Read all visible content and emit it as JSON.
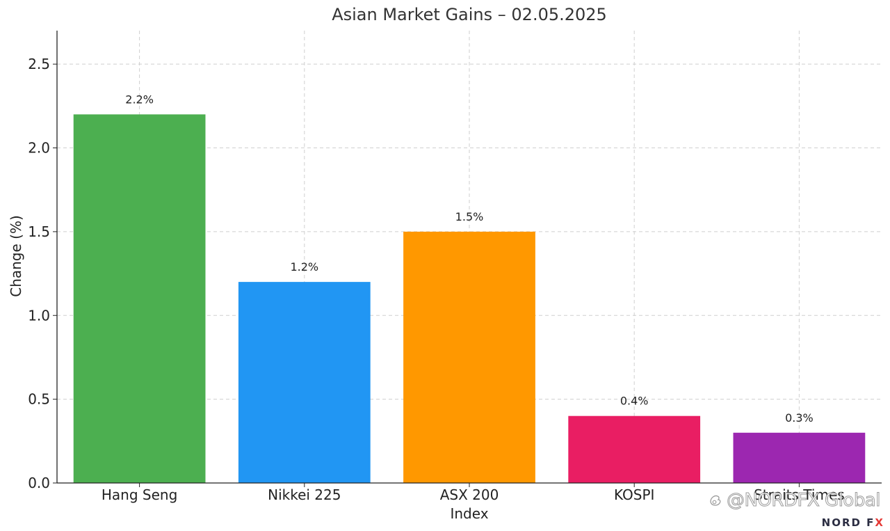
{
  "chart_data": {
    "type": "bar",
    "title": "Asian Market Gains – 02.05.2025",
    "xlabel": "Index",
    "ylabel": "Change (%)",
    "categories": [
      "Hang Seng",
      "Nikkei 225",
      "ASX 200",
      "KOSPI",
      "Straits Times"
    ],
    "values": [
      2.2,
      1.2,
      1.5,
      0.4,
      0.3
    ],
    "data_labels": [
      "2.2%",
      "1.2%",
      "1.5%",
      "0.4%",
      "0.3%"
    ],
    "colors": [
      "#4CAF50",
      "#2196F3",
      "#FF9800",
      "#E91E63",
      "#9C27B0"
    ],
    "ylim": [
      0,
      2.7
    ],
    "yticks": [
      0.0,
      0.5,
      1.0,
      1.5,
      2.0,
      2.5
    ],
    "ytick_labels": [
      "0.0",
      "0.5",
      "1.0",
      "1.5",
      "2.0",
      "2.5"
    ],
    "grid": true,
    "legend": "none"
  },
  "watermark": {
    "text": "@NORDFX Global",
    "icon": "weibo-icon"
  },
  "brand": {
    "name_part1": "NORD F",
    "name_part2": "X"
  }
}
